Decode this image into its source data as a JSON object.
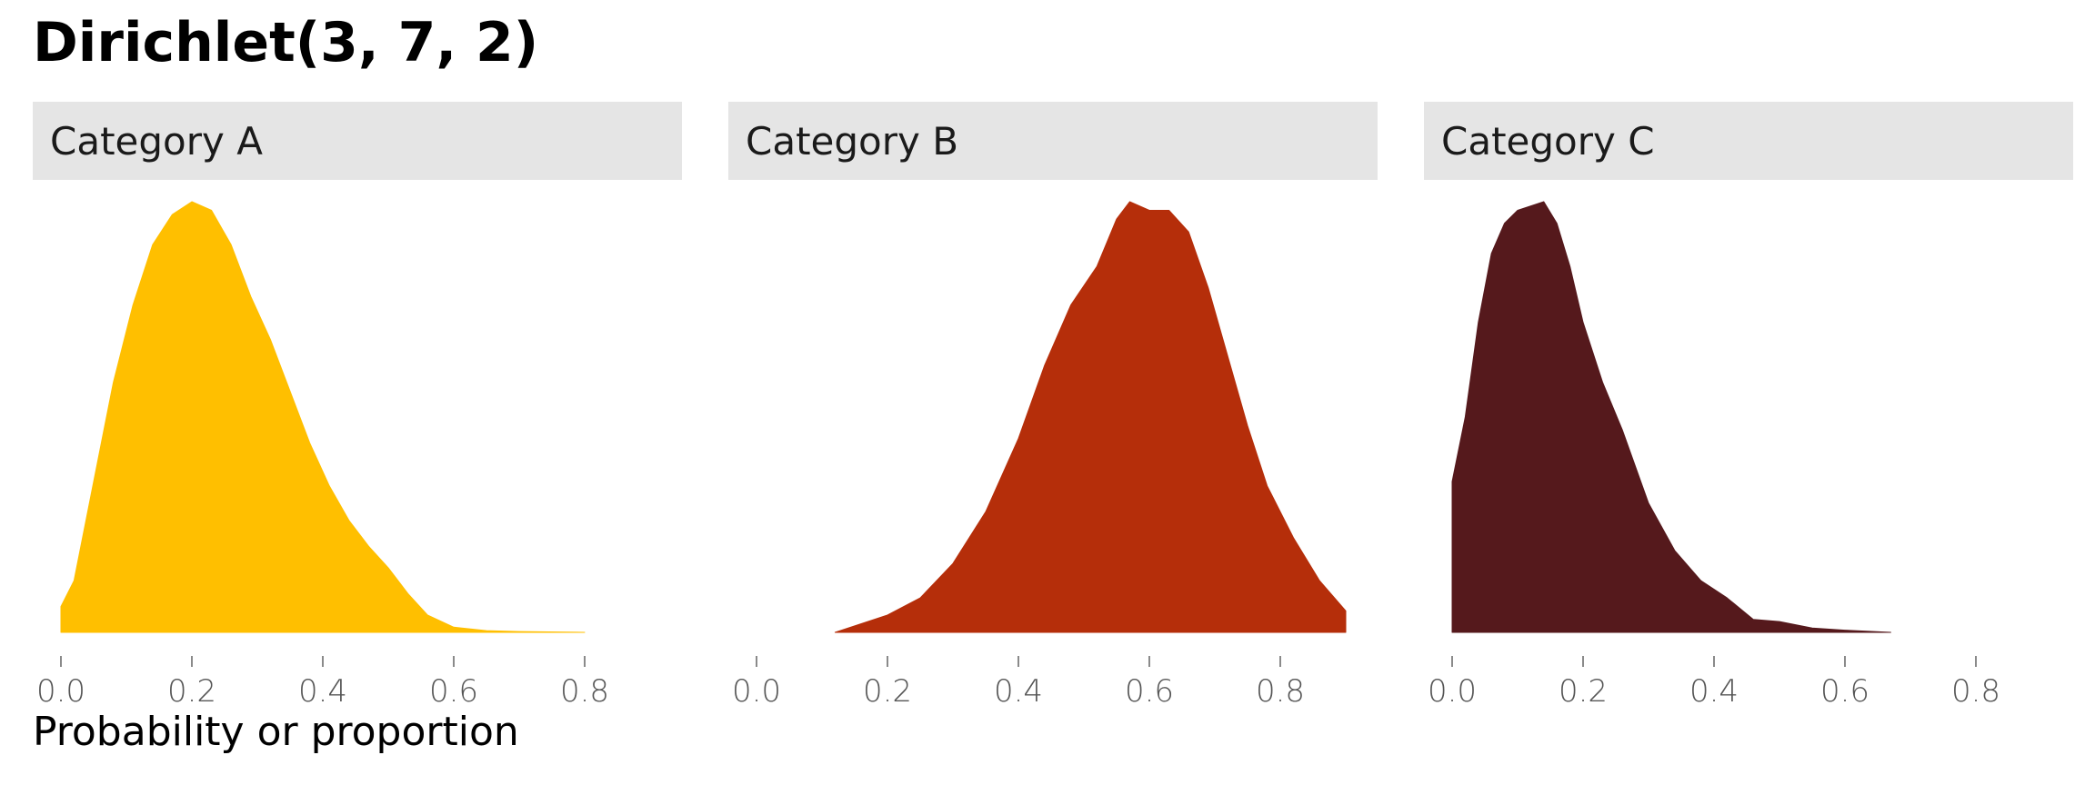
{
  "title": "Dirichlet(3, 7, 2)",
  "xlabel": "Probability or proportion",
  "chart_data": {
    "type": "area",
    "chart_kind": "density",
    "title": "Dirichlet(3, 7, 2)",
    "xlabel": "Probability or proportion",
    "ylabel": "",
    "xlim": [
      0,
      1
    ],
    "x_ticks": [
      0.0,
      0.2,
      0.4,
      0.6,
      0.8
    ],
    "x_tick_labels": [
      "0.0",
      "0.2",
      "0.4",
      "0.6",
      "0.8"
    ],
    "y_axis_shown": false,
    "grid": false,
    "legend": "none",
    "panels": [
      {
        "name": "Category A",
        "color": "#FFBF00",
        "x": [
          0.0,
          0.02,
          0.05,
          0.08,
          0.11,
          0.14,
          0.17,
          0.2,
          0.23,
          0.26,
          0.29,
          0.32,
          0.35,
          0.38,
          0.41,
          0.44,
          0.47,
          0.5,
          0.53,
          0.56,
          0.6,
          0.65,
          0.7,
          0.8
        ],
        "density": [
          0.06,
          0.12,
          0.35,
          0.58,
          0.76,
          0.9,
          0.97,
          1.0,
          0.98,
          0.9,
          0.78,
          0.68,
          0.56,
          0.44,
          0.34,
          0.26,
          0.2,
          0.15,
          0.09,
          0.04,
          0.012,
          0.004,
          0.002,
          0.0
        ]
      },
      {
        "name": "Category B",
        "color": "#B52E0A",
        "x": [
          0.12,
          0.2,
          0.25,
          0.3,
          0.35,
          0.4,
          0.44,
          0.48,
          0.52,
          0.55,
          0.57,
          0.6,
          0.63,
          0.66,
          0.69,
          0.72,
          0.75,
          0.78,
          0.82,
          0.86,
          0.9
        ],
        "density": [
          0.0,
          0.04,
          0.08,
          0.16,
          0.28,
          0.45,
          0.62,
          0.76,
          0.85,
          0.96,
          1.0,
          0.98,
          0.98,
          0.93,
          0.8,
          0.64,
          0.48,
          0.34,
          0.22,
          0.12,
          0.05
        ]
      },
      {
        "name": "Category C",
        "color": "#55191C",
        "x": [
          0.0,
          0.02,
          0.04,
          0.06,
          0.08,
          0.1,
          0.12,
          0.14,
          0.16,
          0.18,
          0.2,
          0.23,
          0.26,
          0.3,
          0.34,
          0.38,
          0.42,
          0.46,
          0.5,
          0.55,
          0.6,
          0.67
        ],
        "density": [
          0.35,
          0.5,
          0.72,
          0.88,
          0.95,
          0.98,
          0.99,
          1.0,
          0.95,
          0.85,
          0.72,
          0.58,
          0.47,
          0.3,
          0.19,
          0.12,
          0.08,
          0.03,
          0.025,
          0.01,
          0.005,
          0.0
        ]
      }
    ]
  }
}
